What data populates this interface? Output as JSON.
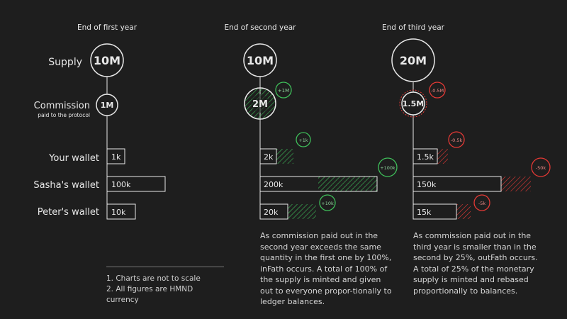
{
  "labels": {
    "supply": "Supply",
    "commission": "Commission",
    "commission_sub": "paid to the protocol",
    "wallets": [
      "Your wallet",
      "Sasha's wallet",
      "Peter's wallet"
    ]
  },
  "columns": [
    {
      "title": "End of first year",
      "supply": "10M",
      "commission": "1M",
      "wallets": [
        "1k",
        "100k",
        "10k"
      ]
    },
    {
      "title": "End of second year",
      "supply": "10M",
      "commission": "2M",
      "commission_delta": "+1M",
      "wallets": [
        "2k",
        "200k",
        "20k"
      ],
      "wallet_deltas": [
        "+1k",
        "+100k",
        "+10k"
      ],
      "paragraph": "As commission paid out in the second year exceeds the same quantity in the first one by 100%, inFath occurs. A total of 100% of the supply is minted and given out to everyone propor-tionally to ledger balances."
    },
    {
      "title": "End of third year",
      "supply": "20M",
      "commission": "1.5M",
      "commission_delta": "-0.5M",
      "wallets": [
        "1.5k",
        "150k",
        "15k"
      ],
      "wallet_deltas": [
        "-0.5k",
        "-50k",
        "-5k"
      ],
      "paragraph": "As commission paid out in the third year is smaller than in the second by 25%, outFath occurs. A total of 25% of the monetary supply is minted and rebased proportionally to balances."
    }
  ],
  "notes": [
    "1. Charts are not to scale",
    "2. All figures are HMND currency"
  ],
  "colors": {
    "increase": "#3fbf5a",
    "decrease": "#e53935",
    "line": "#e8e8e8",
    "background": "#1e1e1e"
  }
}
